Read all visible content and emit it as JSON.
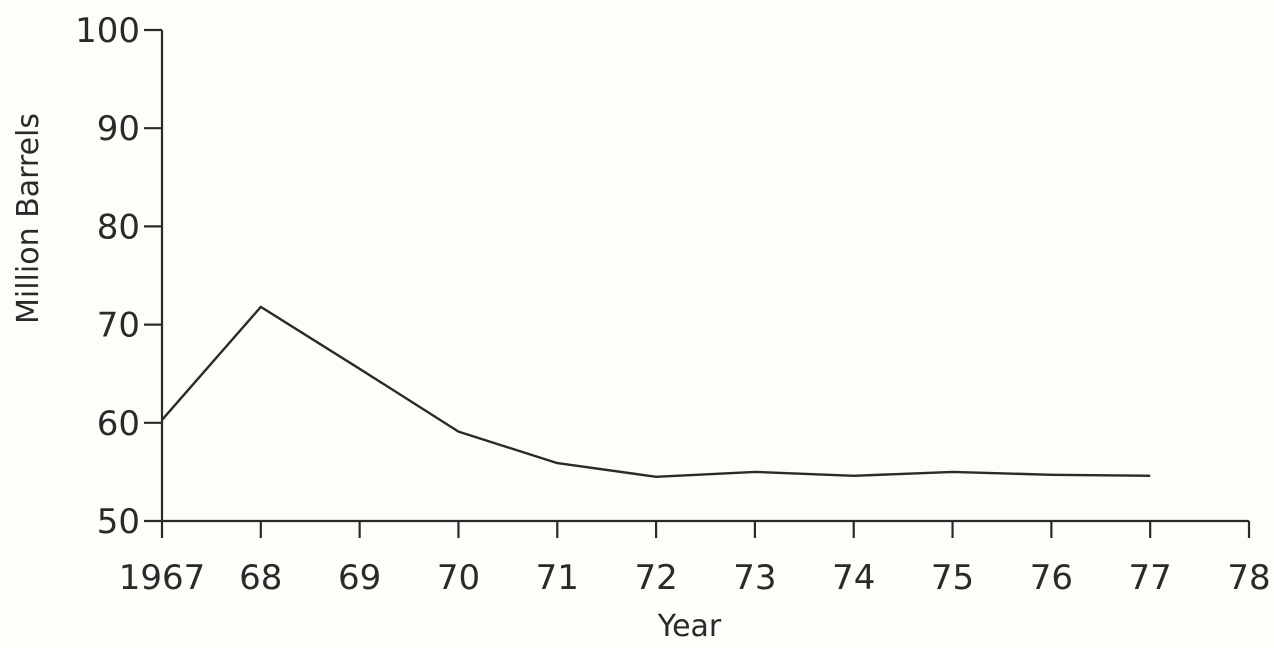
{
  "chart_data": {
    "type": "line",
    "title": "",
    "xlabel": "Year",
    "ylabel": "Million Barrels",
    "x_tick_labels": [
      "1967",
      "68",
      "69",
      "70",
      "71",
      "72",
      "73",
      "74",
      "75",
      "76",
      "77",
      "78"
    ],
    "y_tick_labels": [
      "50",
      "60",
      "70",
      "80",
      "90",
      "100"
    ],
    "xlim": [
      1967,
      1978
    ],
    "ylim": [
      50,
      100
    ],
    "grid": false,
    "series": [
      {
        "x": [
          1967,
          1968,
          1969,
          1970,
          1971,
          1972,
          1973,
          1974,
          1975,
          1976,
          1977
        ],
        "values": [
          60.3,
          71.8,
          65.5,
          59.1,
          55.9,
          54.5,
          55.0,
          54.6,
          55.0,
          54.7,
          54.6
        ]
      }
    ],
    "colors": {
      "ink": "#2a2a2a",
      "background": "#fdfdf9"
    }
  }
}
